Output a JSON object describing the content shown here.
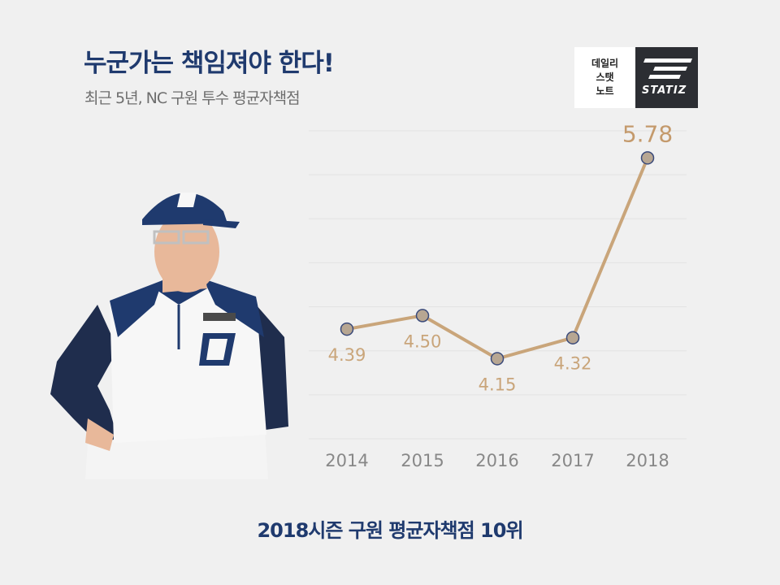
{
  "header": {
    "title": "누군가는 책임져야 한다!",
    "subtitle": "최근 5년, NC 구원 투수 평균자책점"
  },
  "logo": {
    "line1": "데일리",
    "line2": "스탯",
    "line3": "노트",
    "brand": "STATIZ"
  },
  "caption": "2018시즌 구원 평균자책점 10위",
  "chart_data": {
    "type": "line",
    "title": "최근 5년, NC 구원 투수 평균자책점",
    "categories": [
      "2014",
      "2015",
      "2016",
      "2017",
      "2018"
    ],
    "values": [
      4.39,
      4.5,
      4.15,
      4.32,
      5.78
    ],
    "labels": [
      "4.39",
      "4.50",
      "4.15",
      "4.32",
      "5.78"
    ],
    "ylim": [
      3.5,
      6.0
    ],
    "grid": true,
    "line_color": "#c9a57a",
    "marker_fill": "#b7a692",
    "marker_stroke": "#3a4a7a",
    "highlight_color": "#c49a6c",
    "label_color": "#c9a57a",
    "tick_color": "#888888",
    "grid_color": "#e2e2e2"
  },
  "colors": {
    "title": "#1f3a6e",
    "background": "#f0f0f0"
  }
}
